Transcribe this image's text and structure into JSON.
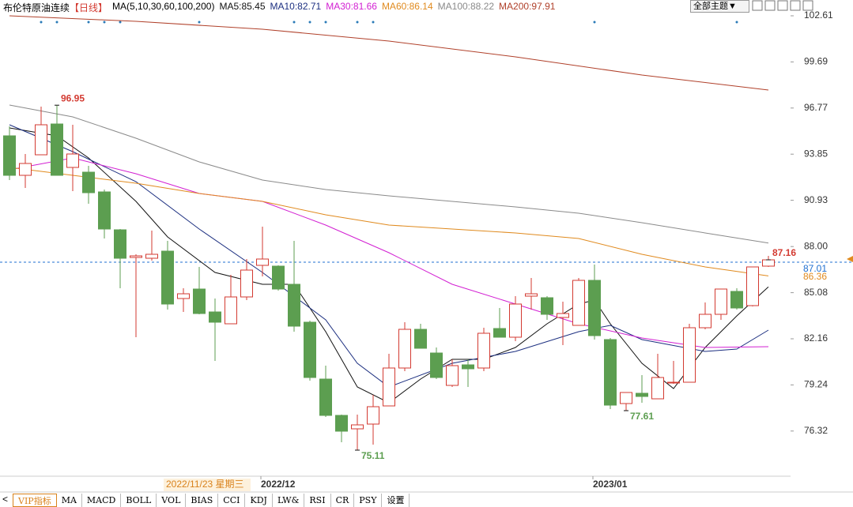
{
  "chart_data": {
    "type": "candlestick",
    "title": "布伦特原油连续",
    "period": "【日线】",
    "ma_label": "MA(5,10,30,60,100,200)",
    "categories": [
      null,
      null,
      null,
      null,
      null,
      null,
      null,
      null,
      null,
      null,
      null,
      null,
      null,
      null,
      null,
      null,
      "2022/12",
      null,
      null,
      null,
      null,
      null,
      null,
      null,
      null,
      null,
      null,
      null,
      null,
      null,
      null,
      null,
      null,
      null,
      null,
      null,
      null,
      "2023/01",
      null,
      null,
      null,
      null,
      null,
      null,
      null,
      null,
      null,
      null,
      null
    ],
    "crosshair_label": "2022/11/23 星期三",
    "open": [
      95.01,
      92.51,
      93.81,
      95.76,
      93.01,
      92.71,
      91.46,
      89.06,
      87.31,
      87.26,
      87.71,
      84.71,
      85.31,
      83.86,
      83.11,
      84.81,
      86.81,
      86.76,
      85.61,
      83.21,
      79.61,
      77.31,
      76.46,
      76.76,
      77.91,
      80.31,
      82.76,
      81.26,
      79.21,
      80.51,
      80.31,
      82.81,
      82.26,
      84.86,
      84.76,
      83.51,
      83.01,
      85.86,
      82.11,
      78.06,
      78.71,
      78.36,
      79.36,
      79.41,
      82.86,
      83.71,
      85.16,
      84.26,
      86.76
    ],
    "high": [
      95.61,
      93.86,
      96.86,
      96.95,
      95.71,
      93.11,
      91.61,
      89.11,
      87.51,
      89.01,
      88.36,
      85.36,
      86.71,
      84.71,
      86.21,
      87.21,
      89.26,
      86.81,
      88.36,
      83.31,
      80.46,
      77.36,
      77.36,
      78.61,
      81.21,
      83.21,
      83.11,
      81.61,
      80.86,
      80.86,
      82.86,
      84.11,
      84.86,
      86.01,
      84.86,
      84.51,
      86.01,
      86.86,
      82.21,
      78.76,
      79.86,
      81.21,
      80.76,
      83.11,
      84.46,
      85.31,
      85.36,
      86.71,
      87.41
    ],
    "low": [
      92.21,
      91.71,
      93.81,
      92.51,
      91.51,
      90.71,
      88.51,
      85.36,
      82.26,
      87.11,
      84.01,
      83.86,
      83.71,
      80.76,
      83.11,
      84.61,
      86.11,
      85.21,
      82.61,
      79.51,
      77.21,
      75.61,
      75.11,
      75.46,
      77.91,
      80.11,
      81.56,
      79.61,
      79.11,
      79.11,
      80.11,
      82.26,
      82.01,
      84.01,
      83.36,
      81.76,
      83.01,
      82.11,
      77.71,
      77.61,
      78.11,
      78.36,
      79.31,
      79.41,
      82.76,
      83.36,
      84.01,
      84.21,
      86.71
    ],
    "close": [
      92.51,
      93.26,
      95.71,
      92.51,
      93.86,
      91.41,
      89.11,
      87.26,
      87.41,
      87.51,
      84.36,
      85.01,
      83.76,
      83.21,
      84.81,
      86.51,
      87.21,
      85.31,
      82.96,
      79.71,
      77.31,
      76.31,
      76.71,
      77.86,
      80.31,
      82.76,
      81.56,
      79.71,
      80.46,
      80.26,
      82.51,
      82.26,
      84.36,
      85.01,
      83.71,
      83.76,
      85.86,
      82.36,
      77.96,
      78.76,
      78.51,
      79.71,
      79.41,
      82.86,
      83.71,
      85.31,
      84.11,
      86.71,
      87.16
    ],
    "up_color": "#d33a31",
    "down_color": "#5c9e50",
    "annotations": [
      96.95,
      75.11,
      77.61,
      87.16
    ],
    "series": [
      {
        "name": "MA5:85.45",
        "color": "#111111",
        "x": [
          0,
          3,
          5,
          8,
          10,
          13,
          16,
          18,
          20,
          22,
          24,
          26,
          28,
          30,
          32,
          34,
          36,
          37,
          38,
          40,
          42,
          44,
          46,
          48
        ],
        "values": [
          95.51,
          95.01,
          93.61,
          90.86,
          88.61,
          86.36,
          85.61,
          85.61,
          82.61,
          79.11,
          78.11,
          79.61,
          80.86,
          80.86,
          81.61,
          83.11,
          84.36,
          84.61,
          83.11,
          80.61,
          79.01,
          81.61,
          83.61,
          85.45
        ]
      },
      {
        "name": "MA10:82.71",
        "color": "#1c2f80",
        "x": [
          0,
          4,
          8,
          12,
          16,
          20,
          22,
          24,
          28,
          32,
          36,
          38,
          40,
          44,
          46,
          48
        ],
        "values": [
          95.71,
          94.01,
          92.11,
          89.11,
          86.36,
          83.36,
          80.61,
          79.11,
          80.61,
          81.36,
          82.61,
          83.01,
          82.11,
          81.36,
          81.51,
          82.71
        ]
      },
      {
        "name": "MA30:81.66",
        "color": "#d21fd2",
        "x": [
          0,
          4,
          8,
          12,
          16,
          20,
          24,
          28,
          32,
          36,
          40,
          44,
          48
        ],
        "values": [
          92.86,
          93.61,
          92.61,
          91.36,
          90.86,
          89.36,
          87.61,
          85.61,
          84.36,
          83.11,
          82.21,
          81.61,
          81.66
        ]
      },
      {
        "name": "MA60:86.14",
        "color": "#e08a1e",
        "x": [
          0,
          4,
          8,
          12,
          16,
          20,
          24,
          28,
          32,
          36,
          40,
          44,
          48
        ],
        "values": [
          93.01,
          92.51,
          92.01,
          91.36,
          90.86,
          90.01,
          89.36,
          89.11,
          88.86,
          88.51,
          87.51,
          86.71,
          86.14
        ]
      },
      {
        "name": "MA100:88.22",
        "color": "#8a8a8a",
        "x": [
          0,
          4,
          8,
          12,
          16,
          20,
          24,
          28,
          32,
          36,
          40,
          44,
          48
        ],
        "values": [
          96.96,
          96.21,
          94.86,
          93.36,
          92.21,
          91.61,
          91.21,
          90.86,
          90.51,
          90.11,
          89.51,
          88.86,
          88.22
        ]
      },
      {
        "name": "MA200:97.91",
        "color": "#b0402a",
        "x": [
          0,
          8,
          16,
          24,
          32,
          40,
          48
        ],
        "values": [
          102.61,
          102.26,
          101.76,
          101.01,
          100.01,
          98.86,
          97.91
        ]
      }
    ],
    "axis_markers": [
      {
        "value": 87.01,
        "color": "#1f6fd0"
      },
      {
        "value": 86.36,
        "color": "#e08a1e"
      }
    ],
    "ylim": [
      73.46,
      103.61
    ],
    "yticks": [
      102.61,
      99.69,
      96.77,
      93.85,
      90.93,
      {
        "value": 88,
        "label": "88.00"
      },
      85.08,
      82.16,
      79.24,
      76.32
    ]
  },
  "theme_button": "全部主题▼",
  "tabs": [
    "VIP指标",
    "MA",
    "MACD",
    "BOLL",
    "VOL",
    "BIAS",
    "CCI",
    "KDJ",
    "LW&",
    "RSI",
    "CR",
    "PSY",
    "设置"
  ]
}
